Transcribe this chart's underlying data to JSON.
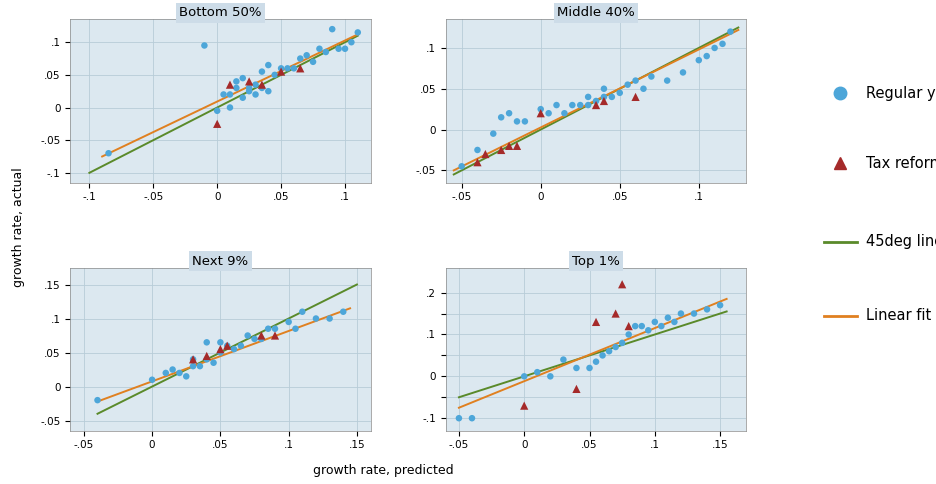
{
  "panels": [
    {
      "title": "Bottom 50%",
      "xlim": [
        -0.115,
        0.12
      ],
      "ylim": [
        -0.115,
        0.135
      ],
      "xticks": [
        -0.1,
        -0.05,
        0,
        0.05,
        0.1
      ],
      "yticks": [
        -0.1,
        -0.05,
        0,
        0.05,
        0.1
      ],
      "xtick_labels": [
        "-.1",
        "-.05",
        "0",
        ".05",
        ".1"
      ],
      "ytick_labels": [
        "-.1",
        "-.05",
        "0",
        ".05",
        ".1"
      ],
      "regular_x": [
        -0.085,
        -0.01,
        0.0,
        0.005,
        0.01,
        0.01,
        0.015,
        0.015,
        0.02,
        0.02,
        0.025,
        0.025,
        0.03,
        0.03,
        0.035,
        0.035,
        0.04,
        0.04,
        0.045,
        0.05,
        0.055,
        0.06,
        0.065,
        0.07,
        0.075,
        0.08,
        0.085,
        0.09,
        0.095,
        0.1,
        0.105,
        0.11
      ],
      "regular_y": [
        -0.07,
        0.095,
        -0.005,
        0.02,
        0.02,
        0.0,
        0.03,
        0.04,
        0.015,
        0.045,
        0.03,
        0.025,
        0.035,
        0.02,
        0.03,
        0.055,
        0.025,
        0.065,
        0.05,
        0.06,
        0.06,
        0.06,
        0.075,
        0.08,
        0.07,
        0.09,
        0.085,
        0.12,
        0.09,
        0.09,
        0.1,
        0.115
      ],
      "reform_x": [
        0.0,
        0.01,
        0.025,
        0.035,
        0.05,
        0.065
      ],
      "reform_y": [
        -0.025,
        0.035,
        0.04,
        0.035,
        0.055,
        0.06
      ],
      "line45_x": [
        -0.1,
        0.11
      ],
      "line45_y": [
        -0.1,
        0.11
      ],
      "fit_x": [
        -0.09,
        0.11
      ],
      "fit_y": [
        -0.075,
        0.112
      ]
    },
    {
      "title": "Middle 40%",
      "xlim": [
        -0.06,
        0.13
      ],
      "ylim": [
        -0.065,
        0.135
      ],
      "xticks": [
        -0.05,
        0,
        0.05,
        0.1
      ],
      "yticks": [
        -0.05,
        0,
        0.05,
        0.1
      ],
      "xtick_labels": [
        "-.05",
        "0",
        ".05",
        ".1"
      ],
      "ytick_labels": [
        "-.05",
        "0",
        ".05",
        ".1"
      ],
      "regular_x": [
        -0.05,
        -0.04,
        -0.03,
        -0.025,
        -0.02,
        -0.015,
        -0.01,
        0.0,
        0.005,
        0.01,
        0.015,
        0.02,
        0.025,
        0.03,
        0.03,
        0.035,
        0.04,
        0.04,
        0.045,
        0.05,
        0.055,
        0.06,
        0.065,
        0.07,
        0.08,
        0.09,
        0.1,
        0.105,
        0.11,
        0.115,
        0.12
      ],
      "regular_y": [
        -0.045,
        -0.025,
        -0.005,
        0.015,
        0.02,
        0.01,
        0.01,
        0.025,
        0.02,
        0.03,
        0.02,
        0.03,
        0.03,
        0.04,
        0.03,
        0.035,
        0.04,
        0.05,
        0.04,
        0.045,
        0.055,
        0.06,
        0.05,
        0.065,
        0.06,
        0.07,
        0.085,
        0.09,
        0.1,
        0.105,
        0.12
      ],
      "reform_x": [
        -0.04,
        -0.035,
        -0.025,
        -0.02,
        -0.015,
        0.0,
        0.035,
        0.04,
        0.06
      ],
      "reform_y": [
        -0.04,
        -0.03,
        -0.025,
        -0.02,
        -0.02,
        0.02,
        0.03,
        0.035,
        0.04
      ],
      "line45_x": [
        -0.055,
        0.125
      ],
      "line45_y": [
        -0.055,
        0.125
      ],
      "fit_x": [
        -0.055,
        0.125
      ],
      "fit_y": [
        -0.05,
        0.122
      ]
    },
    {
      "title": "Next 9%",
      "xlim": [
        -0.06,
        0.16
      ],
      "ylim": [
        -0.065,
        0.175
      ],
      "xticks": [
        -0.05,
        0,
        0.05,
        0.1,
        0.15
      ],
      "yticks": [
        -0.05,
        0,
        0.05,
        0.1,
        0.15
      ],
      "xtick_labels": [
        "-.05",
        "0",
        ".05",
        ".1",
        ".15"
      ],
      "ytick_labels": [
        "-.05",
        "0",
        ".05",
        ".1",
        ".15"
      ],
      "regular_x": [
        -0.04,
        0.0,
        0.01,
        0.015,
        0.02,
        0.025,
        0.03,
        0.03,
        0.035,
        0.04,
        0.04,
        0.045,
        0.05,
        0.05,
        0.055,
        0.06,
        0.065,
        0.07,
        0.075,
        0.08,
        0.085,
        0.09,
        0.1,
        0.105,
        0.11,
        0.12,
        0.13,
        0.14
      ],
      "regular_y": [
        -0.02,
        0.01,
        0.02,
        0.025,
        0.02,
        0.015,
        0.03,
        0.04,
        0.03,
        0.04,
        0.065,
        0.035,
        0.05,
        0.065,
        0.06,
        0.055,
        0.06,
        0.075,
        0.07,
        0.07,
        0.085,
        0.085,
        0.095,
        0.085,
        0.11,
        0.1,
        0.1,
        0.11
      ],
      "reform_x": [
        0.03,
        0.04,
        0.05,
        0.055,
        0.08,
        0.09
      ],
      "reform_y": [
        0.04,
        0.045,
        0.055,
        0.06,
        0.075,
        0.075
      ],
      "line45_x": [
        -0.04,
        0.15
      ],
      "line45_y": [
        -0.04,
        0.15
      ],
      "fit_x": [
        -0.04,
        0.145
      ],
      "fit_y": [
        -0.022,
        0.115
      ]
    },
    {
      "title": "Top 1%",
      "xlim": [
        -0.06,
        0.17
      ],
      "ylim": [
        -0.13,
        0.26
      ],
      "xticks": [
        -0.05,
        0,
        0.05,
        0.1,
        0.15
      ],
      "yticks": [
        -0.1,
        -0.05,
        0,
        0.05,
        0.1,
        0.15,
        0.2
      ],
      "xtick_labels": [
        "-.05",
        "0",
        ".05",
        ".1",
        ".15"
      ],
      "ytick_labels": [
        "-.1",
        "",
        "0",
        "",
        ".1",
        "",
        ".2"
      ],
      "regular_x": [
        -0.05,
        -0.04,
        0.0,
        0.01,
        0.02,
        0.03,
        0.04,
        0.05,
        0.055,
        0.06,
        0.065,
        0.07,
        0.075,
        0.08,
        0.085,
        0.09,
        0.095,
        0.1,
        0.105,
        0.11,
        0.115,
        0.12,
        0.13,
        0.14,
        0.15
      ],
      "regular_y": [
        -0.1,
        -0.1,
        0.0,
        0.01,
        0.0,
        0.04,
        0.02,
        0.02,
        0.035,
        0.05,
        0.06,
        0.07,
        0.08,
        0.1,
        0.12,
        0.12,
        0.11,
        0.13,
        0.12,
        0.14,
        0.13,
        0.15,
        0.15,
        0.16,
        0.17
      ],
      "reform_x": [
        0.0,
        0.04,
        0.055,
        0.07,
        0.075,
        0.08
      ],
      "reform_y": [
        -0.07,
        -0.03,
        0.13,
        0.15,
        0.22,
        0.12
      ],
      "line45_x": [
        -0.05,
        0.155
      ],
      "line45_y": [
        -0.05,
        0.155
      ],
      "fit_x": [
        -0.05,
        0.155
      ],
      "fit_y": [
        -0.075,
        0.185
      ]
    }
  ],
  "regular_color": "#4da6d9",
  "reform_color": "#a52a2a",
  "line45_color": "#5a8a2a",
  "fit_color": "#e08020",
  "panel_bg_color": "#dce8f0",
  "title_bg_color": "#cddce8",
  "xlabel": "growth rate, predicted",
  "ylabel": "growth rate, actual",
  "fig_width": 9.36,
  "fig_height": 4.84,
  "dpi": 100
}
